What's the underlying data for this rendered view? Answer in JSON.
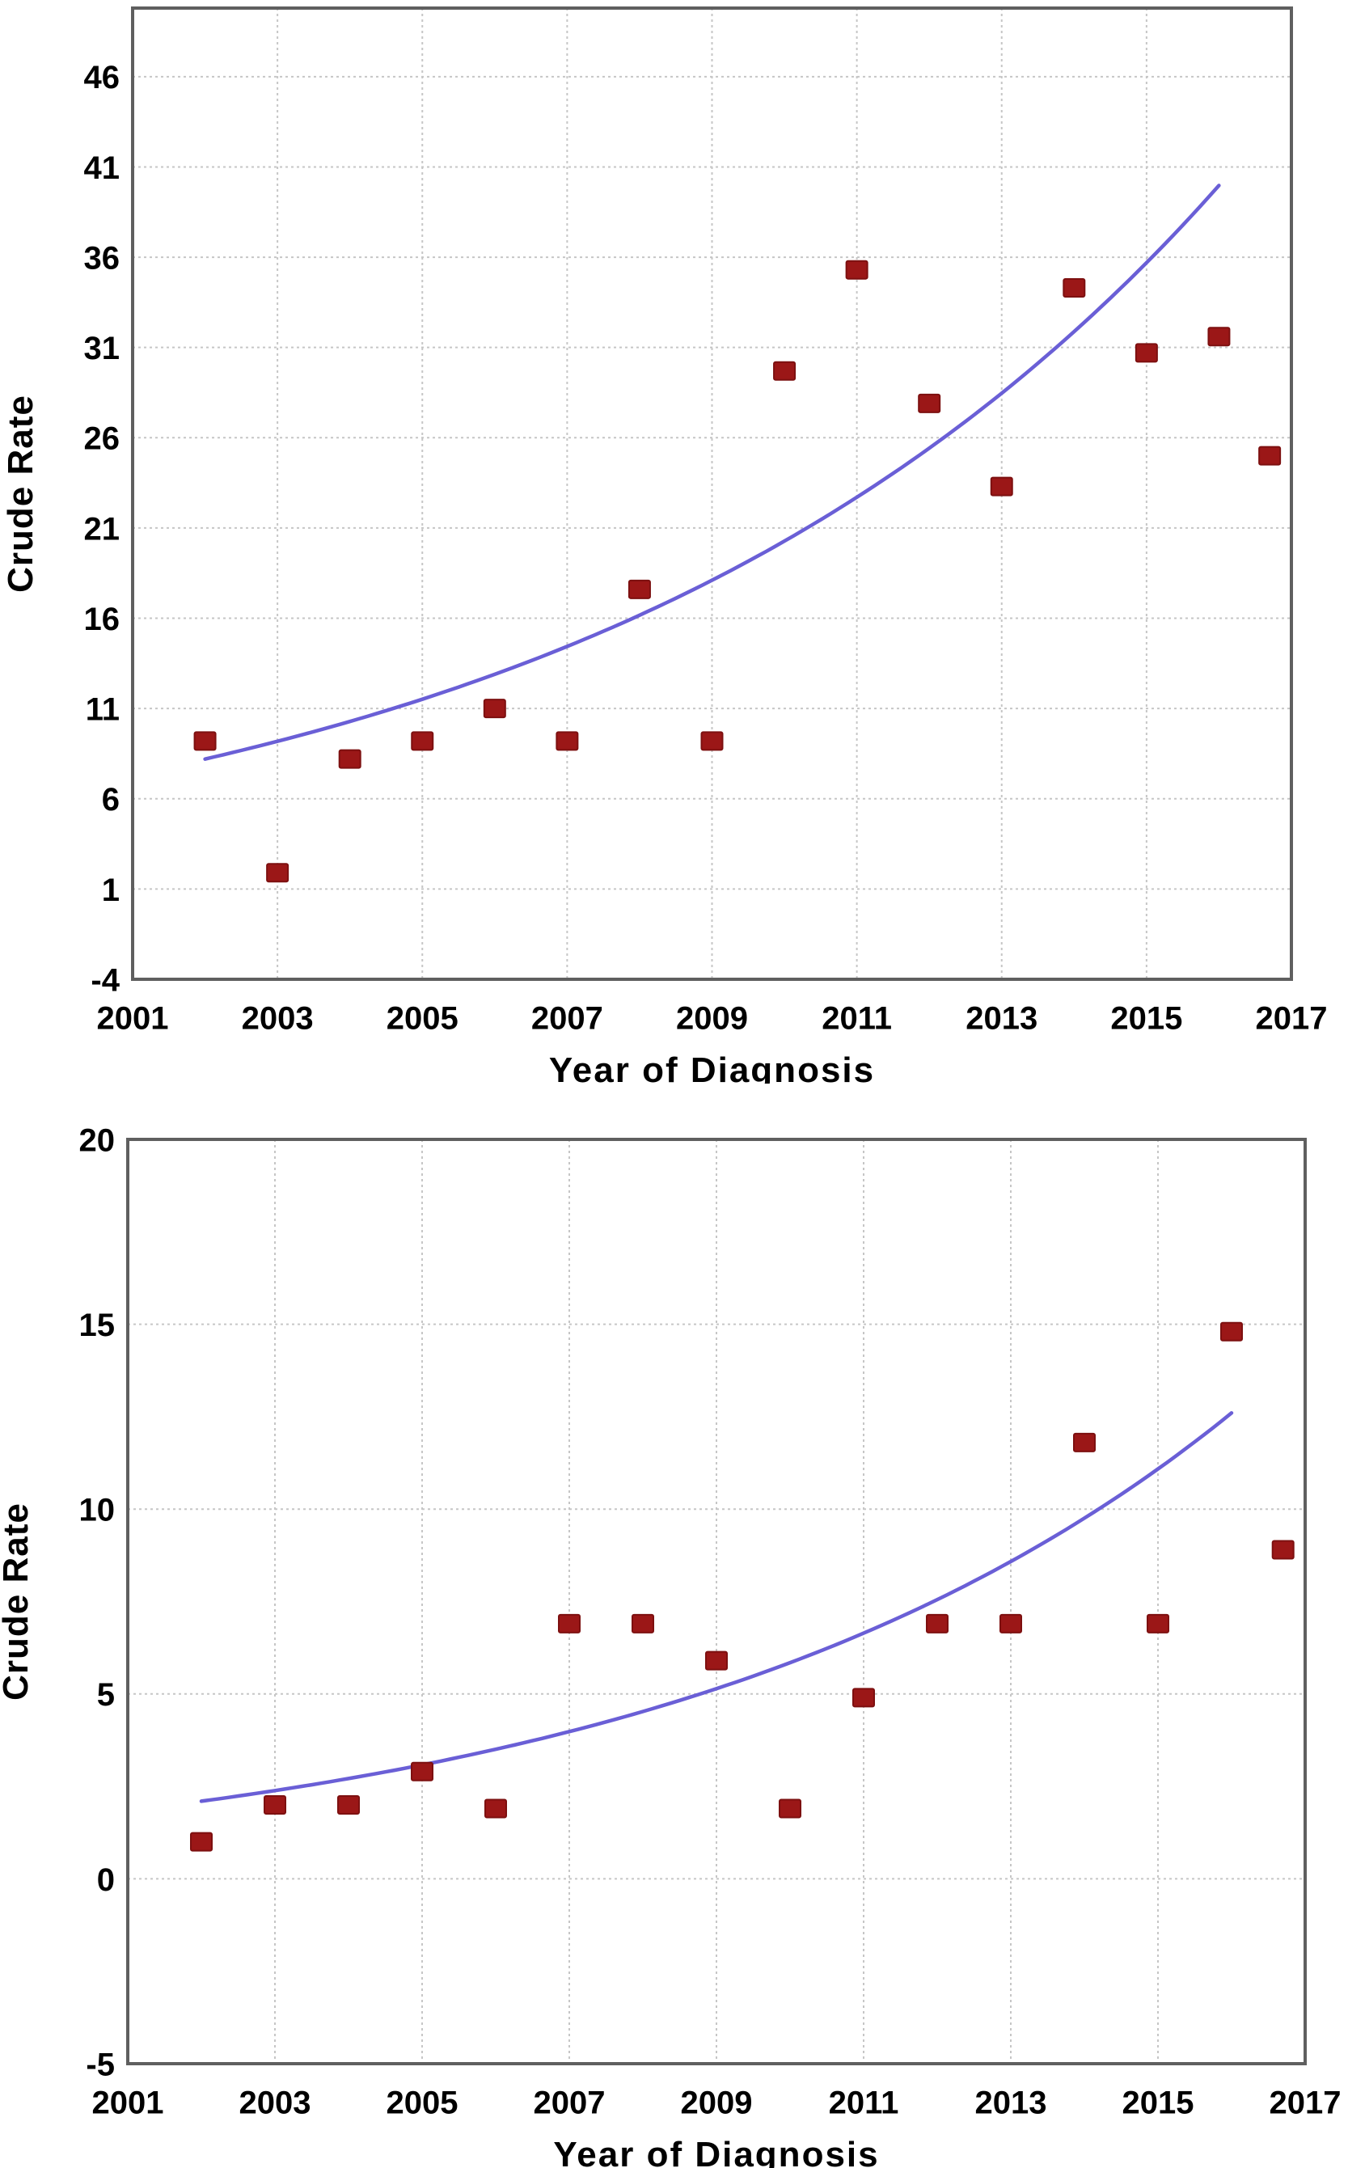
{
  "figure": {
    "description": "Two scatter plots of crude incidence rate by year of diagnosis with exponential trend lines",
    "colors": {
      "marker": "#9b1717",
      "marker_edge": "#7d1010",
      "trend_line": "#6a5fd6",
      "gridline": "#c6c6c6",
      "plot_border": "#5f5f5f",
      "text": "#000000",
      "background": "#ffffff"
    }
  },
  "chart_data": [
    {
      "id": "top",
      "type": "scatter",
      "title": "",
      "xlabel": "Year of Diagnosis",
      "ylabel": "Crude Rate",
      "xlim": [
        2001,
        2017
      ],
      "ylim": [
        -4,
        49.8
      ],
      "x_tick_labels": [
        "2001",
        "2003",
        "2005",
        "2007",
        "2009",
        "2011",
        "2013",
        "2015",
        "2017"
      ],
      "x_tick_values": [
        2001,
        2003,
        2005,
        2007,
        2009,
        2011,
        2013,
        2015,
        2017
      ],
      "y_tick_values": [
        46,
        41,
        36,
        31,
        26,
        21,
        16,
        11,
        6,
        1,
        -4
      ],
      "x_gridlines": [
        2003,
        2005,
        2007,
        2009,
        2011,
        2013,
        2015
      ],
      "y_gridlines": [
        46,
        41,
        36,
        31,
        26,
        21,
        16,
        11,
        6,
        1
      ],
      "grid": true,
      "legend": "none",
      "points": [
        {
          "x": 2002,
          "y": 9.2
        },
        {
          "x": 2003,
          "y": 1.9
        },
        {
          "x": 2004,
          "y": 8.2
        },
        {
          "x": 2005,
          "y": 9.2
        },
        {
          "x": 2006,
          "y": 11.0
        },
        {
          "x": 2007,
          "y": 9.2
        },
        {
          "x": 2008,
          "y": 17.6
        },
        {
          "x": 2009,
          "y": 9.2
        },
        {
          "x": 2010,
          "y": 29.7
        },
        {
          "x": 2011,
          "y": 35.3
        },
        {
          "x": 2012,
          "y": 27.9
        },
        {
          "x": 2013,
          "y": 23.3
        },
        {
          "x": 2014,
          "y": 34.3
        },
        {
          "x": 2015,
          "y": 30.7
        },
        {
          "x": 2016,
          "y": 31.6
        },
        {
          "x": 2016.7,
          "y": 25.0
        }
      ],
      "trend": {
        "model": "exponential",
        "x_start": 2002,
        "y_start": 8.2,
        "x_end": 2016.05,
        "y_end": 40.2
      }
    },
    {
      "id": "bottom",
      "type": "scatter",
      "title": "",
      "xlabel": "Year of Diagnosis",
      "ylabel": "Crude Rate",
      "xlim": [
        2001,
        2017
      ],
      "ylim": [
        -5,
        20
      ],
      "x_tick_labels": [
        "2001",
        "2003",
        "2005",
        "2007",
        "2009",
        "2011",
        "2013",
        "2015",
        "2017"
      ],
      "x_tick_values": [
        2001,
        2003,
        2005,
        2007,
        2009,
        2011,
        2013,
        2015,
        2017
      ],
      "y_tick_values": [
        20,
        15,
        10,
        5,
        0,
        -5
      ],
      "x_gridlines": [
        2003,
        2005,
        2007,
        2009,
        2011,
        2013,
        2015
      ],
      "y_gridlines": [
        15,
        10,
        5,
        0
      ],
      "grid": true,
      "legend": "none",
      "points": [
        {
          "x": 2002,
          "y": 1.0
        },
        {
          "x": 2003,
          "y": 2.0
        },
        {
          "x": 2004,
          "y": 2.0
        },
        {
          "x": 2005,
          "y": 2.9
        },
        {
          "x": 2006,
          "y": 1.9
        },
        {
          "x": 2007,
          "y": 6.9
        },
        {
          "x": 2008,
          "y": 6.9
        },
        {
          "x": 2009,
          "y": 5.9
        },
        {
          "x": 2010,
          "y": 1.9
        },
        {
          "x": 2011,
          "y": 4.9
        },
        {
          "x": 2012,
          "y": 6.9
        },
        {
          "x": 2013,
          "y": 6.9
        },
        {
          "x": 2014,
          "y": 11.8
        },
        {
          "x": 2015,
          "y": 6.9
        },
        {
          "x": 2016,
          "y": 14.8
        },
        {
          "x": 2016.7,
          "y": 8.9
        }
      ],
      "trend": {
        "model": "exponential",
        "x_start": 2002,
        "y_start": 2.1,
        "x_end": 2016.0,
        "y_end": 12.6
      }
    }
  ]
}
